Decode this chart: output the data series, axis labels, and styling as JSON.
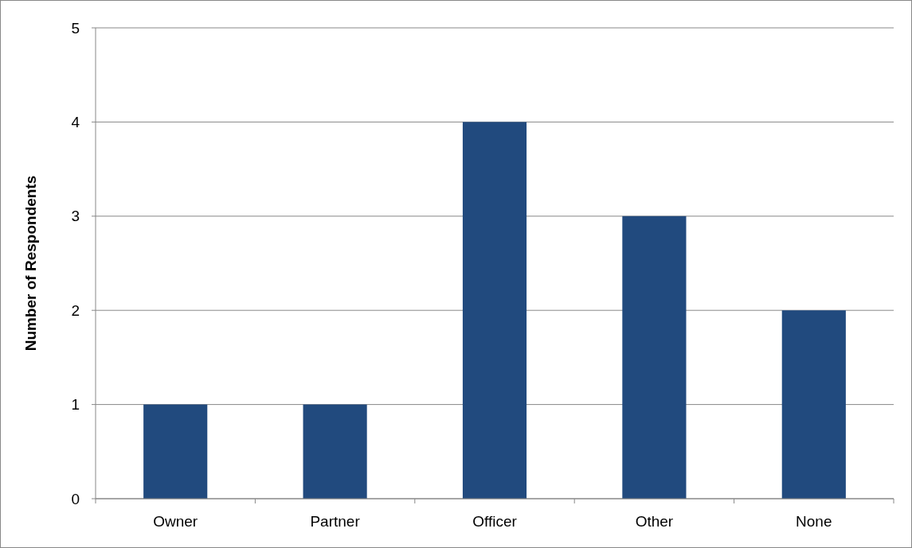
{
  "chart_data": {
    "type": "bar",
    "ylabel": "Number of Respondents",
    "categories": [
      "Owner",
      "Partner",
      "Officer",
      "Other",
      "None"
    ],
    "values": [
      1,
      1,
      4,
      3,
      2
    ],
    "color": "#214a7e",
    "ylim": [
      0,
      5
    ],
    "yticks": [
      0,
      1,
      2,
      3,
      4,
      5
    ],
    "grid": "y"
  }
}
